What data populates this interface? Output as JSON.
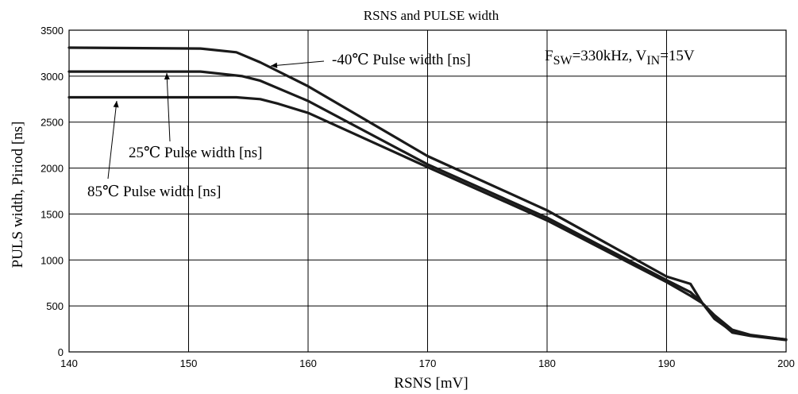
{
  "chart_data": {
    "type": "line",
    "title": "RSNS and PULSE width",
    "xlabel": "RSNS [mV]",
    "ylabel": "PULS width, Piriod [ns]",
    "xlim": [
      140,
      200
    ],
    "ylim": [
      0,
      3500
    ],
    "xticks": [
      "140",
      "150",
      "160",
      "170",
      "180",
      "190",
      "200"
    ],
    "yticks": [
      "0",
      "500",
      "1000",
      "1500",
      "2000",
      "2500",
      "3000",
      "3500"
    ],
    "grid": true,
    "condition": {
      "f_prefix": "F",
      "f_sub": "SW",
      "f_value": "=330kHz, V",
      "v_sub": "IN",
      "v_value": "=15V"
    },
    "series": [
      {
        "name": "-40℃ Pulse width [ns]",
        "points": [
          [
            140,
            3310
          ],
          [
            151,
            3300
          ],
          [
            154,
            3260
          ],
          [
            156,
            3150
          ],
          [
            160,
            2890
          ],
          [
            170,
            2130
          ],
          [
            180,
            1540
          ],
          [
            190,
            820
          ],
          [
            192,
            740
          ],
          [
            193,
            530
          ],
          [
            194,
            380
          ],
          [
            195.5,
            210
          ],
          [
            197,
            175
          ],
          [
            200,
            130
          ]
        ]
      },
      {
        "name": "25℃ Pulse width [ns]",
        "points": [
          [
            140,
            3050
          ],
          [
            151,
            3050
          ],
          [
            154.5,
            3000
          ],
          [
            156,
            2950
          ],
          [
            160,
            2730
          ],
          [
            170,
            2040
          ],
          [
            180,
            1460
          ],
          [
            190,
            780
          ],
          [
            192,
            650
          ],
          [
            193,
            530
          ],
          [
            194,
            360
          ],
          [
            195.5,
            220
          ],
          [
            197,
            180
          ],
          [
            200,
            135
          ]
        ]
      },
      {
        "name": "85℃ Pulse width [ns]",
        "points": [
          [
            140,
            2770
          ],
          [
            154,
            2770
          ],
          [
            156,
            2750
          ],
          [
            157.5,
            2700
          ],
          [
            160,
            2600
          ],
          [
            170,
            2010
          ],
          [
            180,
            1430
          ],
          [
            190,
            760
          ],
          [
            192,
            610
          ],
          [
            193,
            530
          ],
          [
            194,
            400
          ],
          [
            195.5,
            240
          ],
          [
            197,
            185
          ],
          [
            200,
            135
          ]
        ]
      }
    ]
  }
}
